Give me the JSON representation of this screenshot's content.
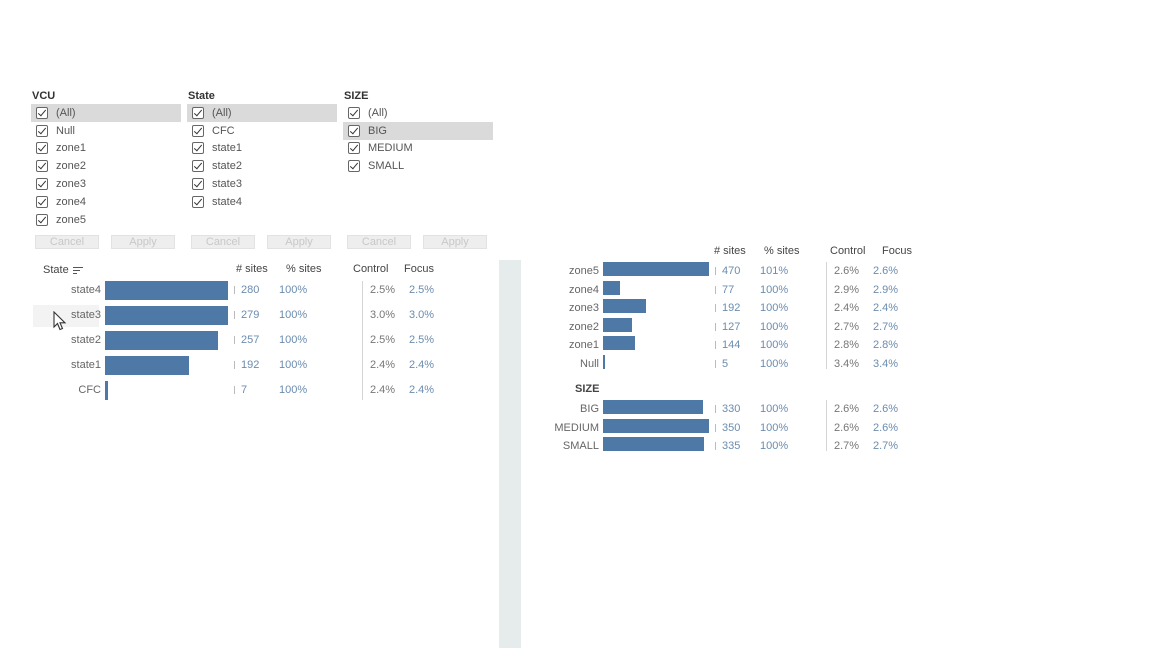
{
  "filters": {
    "vcu": {
      "title": "VCU",
      "items": [
        "(All)",
        "Null",
        "zone1",
        "zone2",
        "zone3",
        "zone4",
        "zone5"
      ],
      "highlight": 0
    },
    "state": {
      "title": "State",
      "items": [
        "(All)",
        "CFC",
        "state1",
        "state2",
        "state3",
        "state4"
      ],
      "highlight": 0
    },
    "size": {
      "title": "SIZE",
      "items": [
        "(All)",
        "BIG",
        "MEDIUM",
        "SMALL"
      ],
      "highlight": 1
    },
    "cancel_label": "Cancel",
    "apply_label": "Apply"
  },
  "headers": {
    "sites": "# sites",
    "pct": "% sites",
    "control": "Control",
    "focus": "Focus"
  },
  "state_table": {
    "title": "State",
    "rows": [
      {
        "label": "state4",
        "sites": "280",
        "pct": "100%",
        "control": "2.5%",
        "focus": "2.5%",
        "value": 280
      },
      {
        "label": "state3",
        "sites": "279",
        "pct": "100%",
        "control": "3.0%",
        "focus": "3.0%",
        "value": 279
      },
      {
        "label": "state2",
        "sites": "257",
        "pct": "100%",
        "control": "2.5%",
        "focus": "2.5%",
        "value": 257
      },
      {
        "label": "state1",
        "sites": "192",
        "pct": "100%",
        "control": "2.4%",
        "focus": "2.4%",
        "value": 192
      },
      {
        "label": "CFC",
        "sites": "7",
        "pct": "100%",
        "control": "2.4%",
        "focus": "2.4%",
        "value": 7
      }
    ]
  },
  "zone_table": {
    "rows": [
      {
        "label": "zone5",
        "sites": "470",
        "pct": "101%",
        "control": "2.6%",
        "focus": "2.6%",
        "value": 470
      },
      {
        "label": "zone4",
        "sites": "77",
        "pct": "100%",
        "control": "2.9%",
        "focus": "2.9%",
        "value": 77
      },
      {
        "label": "zone3",
        "sites": "192",
        "pct": "100%",
        "control": "2.4%",
        "focus": "2.4%",
        "value": 192
      },
      {
        "label": "zone2",
        "sites": "127",
        "pct": "100%",
        "control": "2.7%",
        "focus": "2.7%",
        "value": 127
      },
      {
        "label": "zone1",
        "sites": "144",
        "pct": "100%",
        "control": "2.8%",
        "focus": "2.8%",
        "value": 144
      },
      {
        "label": "Null",
        "sites": "5",
        "pct": "100%",
        "control": "3.4%",
        "focus": "3.4%",
        "value": 5
      }
    ]
  },
  "size_table": {
    "title": "SIZE",
    "rows": [
      {
        "label": "BIG",
        "sites": "330",
        "pct": "100%",
        "control": "2.6%",
        "focus": "2.6%",
        "value": 330
      },
      {
        "label": "MEDIUM",
        "sites": "350",
        "pct": "100%",
        "control": "2.6%",
        "focus": "2.6%",
        "value": 350
      },
      {
        "label": "SMALL",
        "sites": "335",
        "pct": "100%",
        "control": "2.7%",
        "focus": "2.7%",
        "value": 335
      }
    ]
  },
  "colors": {
    "bar": "#4e79a7",
    "value_text": "#6b8caf"
  }
}
